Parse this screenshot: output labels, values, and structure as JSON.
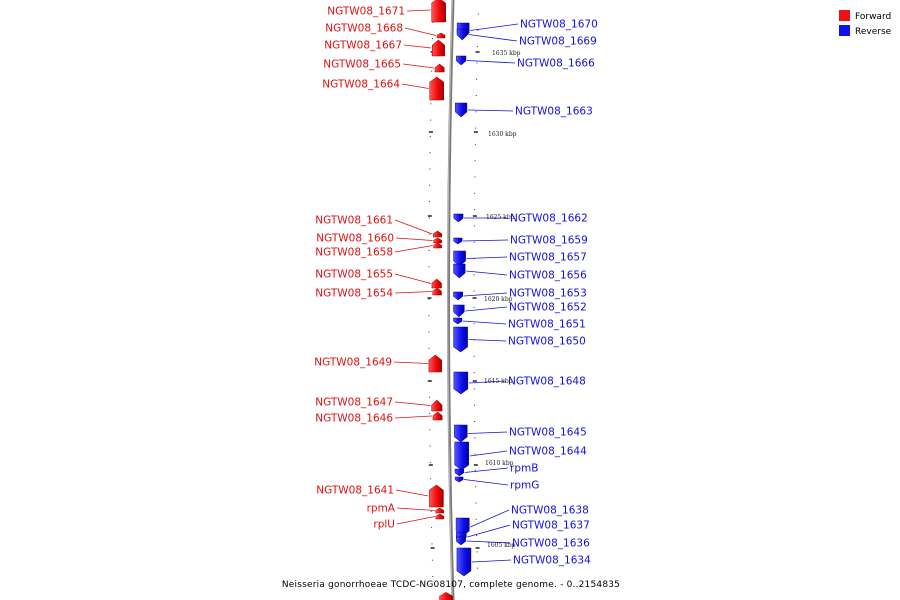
{
  "legend": [
    {
      "label": "Forward",
      "color": "#ee1111"
    },
    {
      "label": "Reverse",
      "color": "#1111ee"
    }
  ],
  "caption": "Neisseria gonorrhoeae TCDC-NG08107, complete genome. - 0..2154835",
  "scale_labels": [
    "1635 kbp",
    "1630 kbp",
    "1625 kbp",
    "1620 kbp",
    "1615 kbp",
    "1610 kbp",
    "1605 kbp"
  ],
  "genes": [
    {
      "name": "NGTW08_1671",
      "strand": "forward"
    },
    {
      "name": "NGTW08_1670",
      "strand": "reverse"
    },
    {
      "name": "NGTW08_1669",
      "strand": "reverse"
    },
    {
      "name": "NGTW08_1668",
      "strand": "forward"
    },
    {
      "name": "NGTW08_1667",
      "strand": "forward"
    },
    {
      "name": "NGTW08_1666",
      "strand": "reverse"
    },
    {
      "name": "NGTW08_1665",
      "strand": "forward"
    },
    {
      "name": "NGTW08_1664",
      "strand": "forward"
    },
    {
      "name": "NGTW08_1663",
      "strand": "reverse"
    },
    {
      "name": "NGTW08_1662",
      "strand": "reverse"
    },
    {
      "name": "NGTW08_1661",
      "strand": "forward"
    },
    {
      "name": "NGTW08_1660",
      "strand": "forward"
    },
    {
      "name": "NGTW08_1659",
      "strand": "reverse"
    },
    {
      "name": "NGTW08_1658",
      "strand": "forward"
    },
    {
      "name": "NGTW08_1657",
      "strand": "reverse"
    },
    {
      "name": "NGTW08_1656",
      "strand": "reverse"
    },
    {
      "name": "NGTW08_1655",
      "strand": "forward"
    },
    {
      "name": "NGTW08_1654",
      "strand": "forward"
    },
    {
      "name": "NGTW08_1653",
      "strand": "reverse"
    },
    {
      "name": "NGTW08_1652",
      "strand": "reverse"
    },
    {
      "name": "NGTW08_1651",
      "strand": "reverse"
    },
    {
      "name": "NGTW08_1650",
      "strand": "reverse"
    },
    {
      "name": "NGTW08_1649",
      "strand": "forward"
    },
    {
      "name": "NGTW08_1648",
      "strand": "reverse"
    },
    {
      "name": "NGTW08_1647",
      "strand": "forward"
    },
    {
      "name": "NGTW08_1646",
      "strand": "forward"
    },
    {
      "name": "NGTW08_1645",
      "strand": "reverse"
    },
    {
      "name": "NGTW08_1644",
      "strand": "reverse"
    },
    {
      "name": "rpmB",
      "strand": "reverse"
    },
    {
      "name": "rpmG",
      "strand": "reverse"
    },
    {
      "name": "NGTW08_1641",
      "strand": "forward"
    },
    {
      "name": "rpmA",
      "strand": "forward"
    },
    {
      "name": "rplU",
      "strand": "forward"
    },
    {
      "name": "NGTW08_1638",
      "strand": "reverse"
    },
    {
      "name": "NGTW08_1637",
      "strand": "reverse"
    },
    {
      "name": "NGTW08_1636",
      "strand": "reverse"
    },
    {
      "name": "NGTW08_1634",
      "strand": "reverse"
    }
  ]
}
